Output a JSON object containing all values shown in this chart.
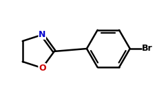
{
  "background_color": "#ffffff",
  "bond_color": "#000000",
  "N_color": "#0000cd",
  "O_color": "#cc0000",
  "Br_color": "#000000",
  "label_N": "N",
  "label_O": "O",
  "label_Br": "Br",
  "figsize": [
    2.41,
    1.43
  ],
  "dpi": 100,
  "lw": 1.8,
  "inner_lw": 1.6,
  "font_size": 9
}
